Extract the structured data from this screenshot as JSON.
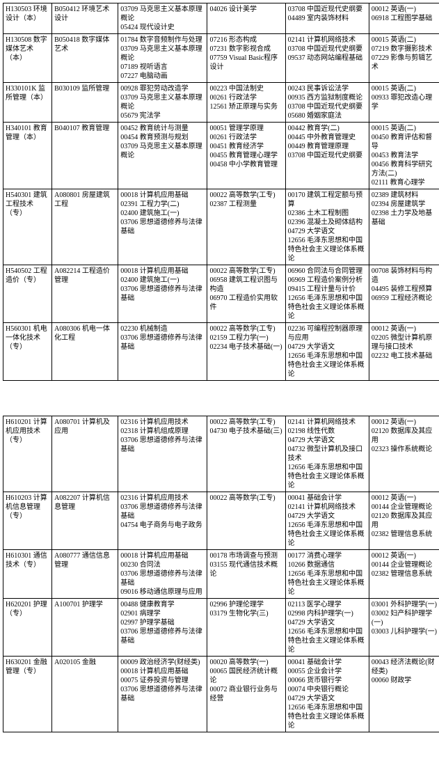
{
  "table1": {
    "rows": [
      [
        "H130503 环境设计（本）",
        "B050412 环境艺术设计",
        "03709 马克思主义基本原理概论\n05424 现代设计史",
        "04026 设计美学",
        "03708 中国近现代史纲要\n04489 室内装饰材料",
        "00012 英语(一)\n06918 工程图学基础"
      ],
      [
        "H130508 数字媒体艺术（本）",
        "B050418 数字媒体艺术",
        "01784 数字音频制作与处理\n03709 马克思主义基本原理概论\n07189 视听语言\n07227 电脑动画",
        "07216 形态构成\n07231 数字影视合成\n07759 Visual Basic程序设计",
        "02141 计算机网络技术\n03708 中国近现代史纲要\n09537 动态网站编程基础",
        "00015 英语(二)\n07219 数字摄影技术\n07229 影像与剪辑艺术"
      ],
      [
        "H330101K 监所管理（本）",
        "B030109 监所管理",
        "00928 罪犯劳动改造学\n03709 马克思主义基本原理概论\n05679 宪法学",
        "00223 中国法制史\n00261 行政法学\n12561 矫正原理与实务",
        "00243 民事诉讼法学\n00935 西方监狱制度概论\n03708 中国近现代史纲要\n05680 婚姻家庭法",
        "00015 英语(二)\n00933 罪犯改造心理学"
      ],
      [
        "H340101 教育管理（本）",
        "B040107 教育管理",
        "00452 教育统计与测量\n00454 教育预测与规划\n03709 马克思主义基本原理概论",
        "00051 管理学原理\n00261 行政法学\n00451 教育经济学\n00455 教育管理心理学\n00458 中小学教育管理",
        "00442 教育学(二)\n00445 中外教育管理史\n00449 教育管理原理\n03708 中国近现代史纲要",
        "00015 英语(二)\n00450 教育评估和督导\n00453 教育法学\n00456 教育科学研究方法(二)\n02111 教育心理学"
      ],
      [
        "H540301 建筑工程技术（专）",
        "A080801 房屋建筑工程",
        "00018 计算机应用基础\n02391 工程力学(二)\n02400 建筑施工(一)\n03706 思想道德修养与法律基础",
        "00022 高等数学(工专)\n02387 工程测量",
        "00170 建筑工程定额与预算\n02386 土木工程制图\n02396 混凝土及砌体结构\n04729 大学语文\n12656 毛泽东思想和中国特色社会主义理论体系概论",
        "02389 建筑材料\n02394 房屋建筑学\n02398 土力学及地基基础"
      ],
      [
        "H540502 工程造价（专）",
        "A082214 工程造价管理",
        "00018 计算机应用基础\n02400 建筑施工(一)\n03706 思想道德修养与法律基础",
        "00022 高等数学(工专)\n06958 建筑工程识图与构造\n06970 工程造价实用软件",
        "06960 合同法与合同管理\n06969 工程造价案例分析\n09415 工程计量与计价\n12656 毛泽东思想和中国特色社会主义理论体系概论",
        "00708 装饰材料与构造\n04495 装修工程预算\n06959 工程经济概论"
      ],
      [
        "H560301 机电一体化技术（专）",
        "A080306 机电一体化工程",
        "02230 机械制造\n03706 思想道德修养与法律基础",
        "00022 高等数学(工专)\n02159 工程力学(一)\n02234 电子技术基础(一)",
        "02236 可编程控制器原理与应用\n04729 大学语文\n12656 毛泽东思想和中国特色社会主义理论体系概论",
        "00012 英语(一)\n02205 微型计算机原理与接口技术\n02232 电工技术基础"
      ]
    ]
  },
  "table2": {
    "rows": [
      [
        "H610201 计算机应用技术（专）",
        "A080701 计算机及应用",
        "02316 计算机应用技术\n02318 计算机组成原理\n03706 思想道德修养与法律基础",
        "00022 高等数学(工专)\n04730 电子技术基础(三)",
        "02141 计算机网络技术\n02198 线性代数\n04729 大学语文\n04732 微型计算机及接口技术\n12656 毛泽东思想和中国特色社会主义理论体系概论",
        "00012 英语(一)\n02120 数据库及其应用\n02323 操作系统概论"
      ],
      [
        "H610203 计算机信息管理（专）",
        "A082207 计算机信息管理",
        "02316 计算机应用技术\n03706 思想道德修养与法律基础\n04754 电子商务与电子政务",
        "00022 高等数学(工专)",
        "00041 基础会计学\n02141 计算机网络技术\n04729 大学语文\n12656 毛泽东思想和中国特色社会主义理论体系概论",
        "00012 英语(一)\n00144 企业管理概论\n02120 数据库及其应用\n02382 管理信息系统"
      ],
      [
        "H610301 通信技术（专）",
        "A080777 通信信息管理",
        "00018 计算机应用基础\n00230 合同法\n03706 思想道德修养与法律基础\n09016 移动通信原理与应用",
        "00178 市场调查与预测\n03155 现代通信技术概论",
        "00177 消费心理学\n10266 数据通信\n12656 毛泽东思想和中国特色社会主义理论体系概论",
        "00012 英语(一)\n00144 企业管理概论\n02382 管理信息系统"
      ],
      [
        "H620201 护理（专）",
        "A100701 护理学",
        "00488 健康教育学\n02901 病理学\n02997 护理学基础\n03706 思想道德修养与法律基础",
        "02996 护理伦理学\n03179 生物化学(三)",
        "02113 医学心理学\n02998 内科护理学(一)\n04729 大学语文\n12656 毛泽东思想和中国特色社会主义理论体系概论",
        "03001 外科护理学(一)\n03002 妇产科护理学(一)\n03003 儿科护理学(一)"
      ],
      [
        "H630201 金融管理（专）",
        "A020105 金融",
        "00009 政治经济学(财经类)\n00018 计算机应用基础\n00075 证券投资与管理\n03706 思想道德修养与法律基础",
        "00020 高等数学(一)\n00065 国民经济统计概论\n00072 商业银行业务与经营",
        "00041 基础会计学\n00055 企业会计学\n00066 货币银行学\n00074 中央银行概论\n04729 大学语文\n12656 毛泽东思想和中国特色社会主义理论体系概论",
        "00043 经济法概论(财经类)\n00060 财政学"
      ]
    ]
  }
}
